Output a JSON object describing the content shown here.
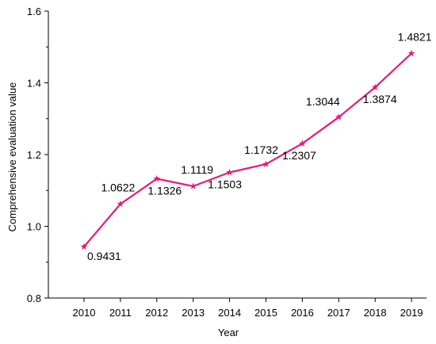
{
  "chart_data": {
    "type": "line",
    "xlabel": "Year",
    "ylabel": "Comprehensive evaluation value",
    "ylim": [
      0.8,
      1.6
    ],
    "yticks": [
      "0.8",
      "1.0",
      "1.2",
      "1.4",
      "1.6"
    ],
    "grid": false,
    "categories": [
      "2010",
      "2011",
      "2012",
      "2013",
      "2014",
      "2015",
      "2016",
      "2017",
      "2018",
      "2019"
    ],
    "series": [
      {
        "values": [
          0.9431,
          1.0622,
          1.1326,
          1.1119,
          1.1503,
          1.1732,
          1.2307,
          1.3044,
          1.3874,
          1.4821
        ],
        "labels": [
          "0.9431",
          "1.0622",
          "1.1326",
          "1.1119",
          "1.1503",
          "1.1732",
          "1.2307",
          "1.3044",
          "1.3874",
          "1.4821"
        ],
        "color": "#e6197a",
        "marker": "star"
      }
    ]
  }
}
